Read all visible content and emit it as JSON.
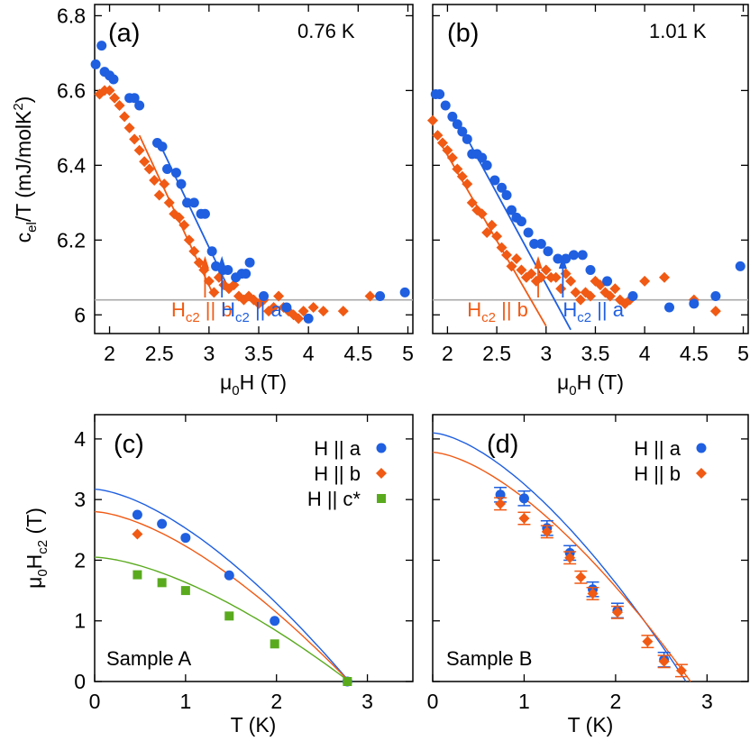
{
  "colors": {
    "a": "#1f5fe0",
    "b": "#f05a14",
    "c": "#5aaa1e",
    "ref": "#aaaaaa",
    "frame": "#000000"
  },
  "labels": {
    "ylabel_top_main": "c",
    "ylabel_top_sub": "el",
    "ylabel_top_rest": "/T (mJ/molK",
    "ylabel_top_sup": "2",
    "ylabel_top_end": ")",
    "xlabel_top_mu": "μ",
    "xlabel_top_sub": "0",
    "xlabel_top_rest": "H (T)",
    "ylabel_bottom_mu": "μ",
    "ylabel_bottom_sub0": "0",
    "ylabel_bottom_H": "H",
    "ylabel_bottom_sub": "c2",
    "ylabel_bottom_rest": " (T)",
    "xlabel_bottom": "T (K)",
    "hc2_H": "H",
    "hc2_sub": "c2",
    "hc2_b_rest": " || b",
    "hc2_a_rest": " || a"
  },
  "chart_data": [
    {
      "panel": "(a)",
      "annotation": "0.76 K",
      "type": "scatter",
      "xlim": [
        1.85,
        5.05
      ],
      "ylim": [
        5.95,
        6.83
      ],
      "xticks": [
        "2",
        "2.5",
        "3",
        "3.5",
        "4",
        "4.5",
        "5"
      ],
      "yticks": [
        "6",
        "6.2",
        "6.4",
        "6.6",
        "6.8"
      ],
      "reference_line": 6.04,
      "series": [
        {
          "key": "a",
          "x": [
            1.86,
            1.92,
            1.95,
            2.0,
            2.04,
            2.2,
            2.25,
            2.3,
            2.48,
            2.53,
            2.58,
            2.67,
            2.72,
            2.78,
            2.85,
            2.92,
            2.96,
            3.03,
            3.07,
            3.14,
            3.19,
            3.27,
            3.33,
            3.37,
            3.41,
            3.55,
            3.78,
            4.0,
            4.72,
            4.97
          ],
          "y": [
            6.67,
            6.72,
            6.65,
            6.64,
            6.63,
            6.58,
            6.58,
            6.56,
            6.46,
            6.45,
            6.39,
            6.38,
            6.35,
            6.3,
            6.3,
            6.27,
            6.27,
            6.17,
            6.13,
            6.12,
            6.12,
            6.1,
            6.11,
            6.11,
            6.14,
            6.05,
            6.02,
            5.99,
            6.05,
            6.06
          ]
        },
        {
          "key": "b",
          "x": [
            1.9,
            1.95,
            2.0,
            2.05,
            2.1,
            2.15,
            2.2,
            2.25,
            2.3,
            2.35,
            2.4,
            2.45,
            2.5,
            2.55,
            2.6,
            2.65,
            2.7,
            2.75,
            2.8,
            2.85,
            2.9,
            2.95,
            3.0,
            3.05,
            3.1,
            3.15,
            3.2,
            3.25,
            3.3,
            3.35,
            3.4,
            3.45,
            3.5,
            3.55,
            3.6,
            3.65,
            3.7,
            3.75,
            3.8,
            3.85,
            3.9,
            3.95,
            4.05,
            4.15,
            4.35,
            4.62
          ],
          "y": [
            6.59,
            6.6,
            6.6,
            6.58,
            6.56,
            6.53,
            6.5,
            6.47,
            6.44,
            6.41,
            6.39,
            6.36,
            6.32,
            6.35,
            6.3,
            6.27,
            6.26,
            6.24,
            6.2,
            6.17,
            6.14,
            6.12,
            6.09,
            6.06,
            6.1,
            6.08,
            6.07,
            6.08,
            6.05,
            6.04,
            6.05,
            6.04,
            6.03,
            6.04,
            6.01,
            6.02,
            6.05,
            6.02,
            6.01,
            6.0,
            5.99,
            6.01,
            6.02,
            6.01,
            6.01,
            6.05
          ]
        }
      ],
      "fits": [
        {
          "key": "b",
          "x": [
            2.3,
            3.05
          ],
          "y": [
            6.48,
            6.05
          ]
        },
        {
          "key": "a",
          "x": [
            2.5,
            3.18
          ],
          "y": [
            6.46,
            6.08
          ]
        }
      ],
      "markers": [
        {
          "key": "b",
          "x": 2.96,
          "text_x": 2.62
        },
        {
          "key": "a",
          "x": 3.13,
          "text_x": 3.12
        }
      ]
    },
    {
      "panel": "(b)",
      "annotation": "1.01 K",
      "type": "scatter",
      "xlim": [
        1.85,
        5.05
      ],
      "ylim": [
        5.95,
        6.83
      ],
      "xticks": [
        "2",
        "2.5",
        "3",
        "3.5",
        "4",
        "4.5",
        "5"
      ],
      "yticks": [],
      "reference_line": 6.04,
      "series": [
        {
          "key": "a",
          "x": [
            1.88,
            1.92,
            1.98,
            2.05,
            2.1,
            2.15,
            2.2,
            2.25,
            2.3,
            2.35,
            2.4,
            2.48,
            2.55,
            2.6,
            2.65,
            2.7,
            2.75,
            2.82,
            2.88,
            2.95,
            3.02,
            3.12,
            3.2,
            3.28,
            3.37,
            3.45,
            3.62,
            3.88,
            4.25,
            4.5,
            4.72,
            4.97
          ],
          "y": [
            6.59,
            6.59,
            6.56,
            6.53,
            6.51,
            6.49,
            6.47,
            6.43,
            6.43,
            6.42,
            6.4,
            6.36,
            6.34,
            6.32,
            6.28,
            6.26,
            6.25,
            6.22,
            6.19,
            6.19,
            6.17,
            6.15,
            6.15,
            6.16,
            6.16,
            6.12,
            6.09,
            6.05,
            6.02,
            6.03,
            6.05,
            6.13
          ]
        },
        {
          "key": "b",
          "x": [
            1.85,
            1.9,
            1.95,
            2.0,
            2.05,
            2.1,
            2.15,
            2.2,
            2.25,
            2.3,
            2.35,
            2.4,
            2.45,
            2.5,
            2.55,
            2.6,
            2.65,
            2.7,
            2.75,
            2.8,
            2.85,
            2.9,
            2.95,
            3.0,
            3.05,
            3.1,
            3.15,
            3.2,
            3.25,
            3.3,
            3.35,
            3.4,
            3.45,
            3.5,
            3.55,
            3.6,
            3.65,
            3.7,
            3.75,
            3.8,
            3.85,
            4.0,
            4.2,
            4.5,
            4.72
          ],
          "y": [
            6.52,
            6.48,
            6.46,
            6.44,
            6.42,
            6.39,
            6.37,
            6.35,
            6.3,
            6.28,
            6.27,
            6.22,
            6.24,
            6.21,
            6.18,
            6.16,
            6.13,
            6.15,
            6.12,
            6.1,
            6.11,
            6.09,
            6.1,
            6.12,
            6.1,
            6.1,
            6.07,
            6.11,
            6.09,
            6.06,
            6.04,
            6.06,
            6.05,
            6.09,
            6.08,
            6.06,
            6.05,
            6.07,
            6.04,
            6.03,
            6.04,
            6.09,
            6.1,
            6.04,
            6.01
          ]
        }
      ],
      "fits": [
        {
          "key": "b",
          "x": [
            1.95,
            3.0
          ],
          "y": [
            6.45,
            5.97
          ]
        },
        {
          "key": "a",
          "x": [
            2.1,
            3.25
          ],
          "y": [
            6.52,
            5.96
          ]
        }
      ],
      "markers": [
        {
          "key": "b",
          "x": 2.92,
          "text_x": 2.2
        },
        {
          "key": "a",
          "x": 3.17,
          "text_x": 3.17
        }
      ]
    },
    {
      "panel": "(c)",
      "sample": "Sample A",
      "type": "scatter",
      "xlim": [
        0,
        3.5
      ],
      "ylim": [
        0,
        4.4
      ],
      "xticks": [
        "0",
        "1",
        "2",
        "3"
      ],
      "yticks": [
        "0",
        "1",
        "2",
        "3",
        "4"
      ],
      "xlabel": "T (K)",
      "series": [
        {
          "key": "a",
          "name": "H || a",
          "marker": "circle",
          "x": [
            0.47,
            0.74,
            1.0,
            1.48,
            1.98,
            2.78
          ],
          "y": [
            2.75,
            2.6,
            2.37,
            1.75,
            1.0,
            0.0
          ]
        },
        {
          "key": "b",
          "name": "H || b",
          "marker": "diamond",
          "x": [
            0.47
          ],
          "y": [
            2.43
          ]
        },
        {
          "key": "c",
          "name": "H || c*",
          "marker": "square",
          "x": [
            0.47,
            0.74,
            1.0,
            1.48,
            1.98,
            2.78
          ],
          "y": [
            1.76,
            1.63,
            1.5,
            1.08,
            0.62,
            0.0
          ]
        }
      ],
      "fits": [
        {
          "key": "a",
          "H0": 3.17,
          "Tc": 2.8
        },
        {
          "key": "b",
          "H0": 2.8,
          "Tc": 2.8
        },
        {
          "key": "c",
          "H0": 2.05,
          "Tc": 2.8
        }
      ]
    },
    {
      "panel": "(d)",
      "sample": "Sample B",
      "type": "scatter",
      "xlim": [
        0,
        3.45
      ],
      "ylim": [
        0,
        4.4
      ],
      "xticks": [
        "0",
        "1",
        "2",
        "3"
      ],
      "yticks": [],
      "xlabel": "T (K)",
      "series": [
        {
          "key": "a",
          "name": "H || a",
          "marker": "circle",
          "x": [
            0.74,
            1.0,
            1.25,
            1.5,
            1.75,
            2.02,
            2.53
          ],
          "y": [
            3.08,
            3.02,
            2.53,
            2.12,
            1.52,
            1.17,
            0.36
          ],
          "err": 0.12
        },
        {
          "key": "b",
          "name": "H || b",
          "marker": "diamond",
          "x": [
            0.74,
            1.0,
            1.25,
            1.5,
            1.62,
            1.75,
            2.02,
            2.35,
            2.53,
            2.72
          ],
          "y": [
            2.93,
            2.69,
            2.47,
            2.04,
            1.72,
            1.45,
            1.14,
            0.66,
            0.33,
            0.18
          ],
          "err": 0.1
        }
      ],
      "fits": [
        {
          "key": "a",
          "H0": 4.1,
          "Tc": 2.77
        },
        {
          "key": "b",
          "H0": 3.78,
          "Tc": 2.82
        }
      ]
    }
  ]
}
